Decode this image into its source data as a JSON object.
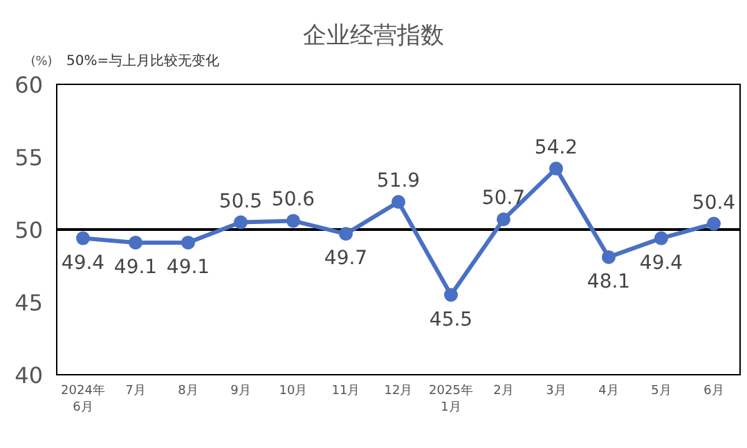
{
  "chart_data": {
    "type": "line",
    "title": "企业经营指数",
    "subtitle": "50%=与上月比较无变化",
    "ylabel": "(%)",
    "categories": [
      "2024年\n6月",
      "7月",
      "8月",
      "9月",
      "10月",
      "11月",
      "12月",
      "2025年\n1月",
      "2月",
      "3月",
      "4月",
      "5月",
      "6月"
    ],
    "series": [
      {
        "color": "#4a70c4",
        "values": [
          49.4,
          49.1,
          49.1,
          50.5,
          50.6,
          49.7,
          51.9,
          45.5,
          50.7,
          54.2,
          48.1,
          49.4,
          50.4
        ]
      }
    ],
    "ylim": [
      40,
      60
    ],
    "yticks": [
      40,
      45,
      50,
      55,
      60
    ],
    "ref_lines": [
      {
        "axis": "y",
        "value": 50,
        "color": "#000000"
      }
    ],
    "data_labels": true,
    "marker": "circle",
    "line_style": "solid",
    "grid": false
  }
}
